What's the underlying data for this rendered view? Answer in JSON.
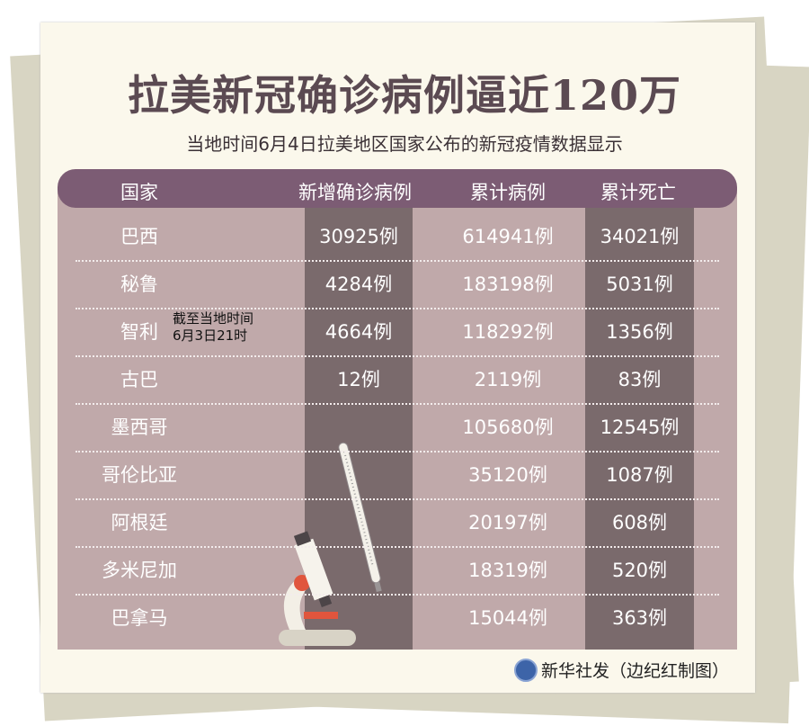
{
  "title": "拉美新冠确诊病例逼近120万",
  "subtitle": "当地时间6月4日拉美地区国家公布的新冠疫情数据显示",
  "note": [
    "截至当地时间",
    "6月3日21时"
  ],
  "credit": "新华社发（边纪红制图）",
  "colors": {
    "header": "#7c5c74",
    "body": "#c0a9aa",
    "dark_column": "#7a6a6c",
    "title": "#5b4a52"
  },
  "chart_data": {
    "type": "table",
    "columns": [
      "国家",
      "新增确诊病例",
      "累计病例",
      "累计死亡"
    ],
    "rows": [
      [
        "巴西",
        "30925例",
        "614941例",
        "34021例"
      ],
      [
        "秘鲁",
        "4284例",
        "183198例",
        "5031例"
      ],
      [
        "智利",
        "4664例",
        "118292例",
        "1356例"
      ],
      [
        "古巴",
        "12例",
        "2119例",
        "83例"
      ],
      [
        "墨西哥",
        "",
        "105680例",
        "12545例"
      ],
      [
        "哥伦比亚",
        "",
        "35120例",
        "1087例"
      ],
      [
        "阿根廷",
        "",
        "20197例",
        "608例"
      ],
      [
        "多米尼加",
        "",
        "18319例",
        "520例"
      ],
      [
        "巴拿马",
        "",
        "15044例",
        "363例"
      ]
    ]
  }
}
